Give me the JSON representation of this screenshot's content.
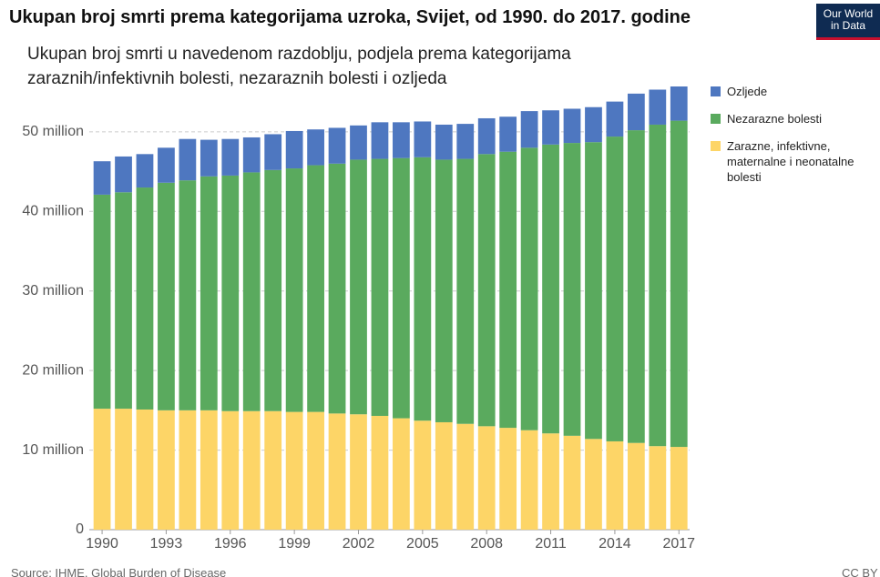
{
  "chart_data": {
    "type": "stacked_bar",
    "title": "Ukupan broj smrti prema kategorijama uzroka, Svijet, od 1990. do 2017. godine",
    "subtitle": "Ukupan broj smrti u navedenom razdoblju, podjela prema kategorijama zaraznih/infektivnih bolesti, nezaraznih bolesti i ozljeda",
    "logo": [
      "Our World",
      "in Data"
    ],
    "source": "Source: IHME, Global Burden of Disease",
    "license": "CC BY",
    "x": [
      1990,
      1991,
      1992,
      1993,
      1994,
      1995,
      1996,
      1997,
      1998,
      1999,
      2000,
      2001,
      2002,
      2003,
      2004,
      2005,
      2006,
      2007,
      2008,
      2009,
      2010,
      2011,
      2012,
      2013,
      2014,
      2015,
      2016,
      2017
    ],
    "xlim": [
      1989.4,
      2017.5
    ],
    "xticks": [
      1990,
      1993,
      1996,
      1999,
      2002,
      2005,
      2008,
      2011,
      2014,
      2017
    ],
    "ylim": [
      0,
      55700000
    ],
    "yticks": [
      0,
      {
        "value": 10000000,
        "label": "10 million"
      },
      {
        "value": 20000000,
        "label": "20 million"
      },
      {
        "value": 30000000,
        "label": "30 million"
      },
      {
        "value": 40000000,
        "label": "40 million"
      },
      {
        "value": 50000000,
        "label": "50 million"
      }
    ],
    "grid": true,
    "series": [
      {
        "name": "Zarazne, infektivne, maternalne i neonatalne bolesti",
        "color": "#fdd567",
        "values": [
          15200000,
          15200000,
          15100000,
          15000000,
          15000000,
          15000000,
          14900000,
          14900000,
          14900000,
          14800000,
          14800000,
          14600000,
          14500000,
          14300000,
          14000000,
          13700000,
          13500000,
          13300000,
          13000000,
          12800000,
          12500000,
          12100000,
          11800000,
          11400000,
          11100000,
          10900000,
          10500000,
          10400000
        ]
      },
      {
        "name": "Nezarazne bolesti",
        "color": "#5aaa5e",
        "values": [
          26900000,
          27200000,
          27900000,
          28600000,
          28900000,
          29400000,
          29600000,
          30000000,
          30300000,
          30600000,
          31000000,
          31400000,
          32000000,
          32300000,
          32700000,
          33100000,
          33000000,
          33300000,
          34200000,
          34700000,
          35500000,
          36300000,
          36800000,
          37300000,
          38300000,
          39300000,
          40400000,
          41000000
        ]
      },
      {
        "name": "Ozljede",
        "color": "#4e77c0",
        "values": [
          4200000,
          4500000,
          4200000,
          4400000,
          5200000,
          4600000,
          4600000,
          4400000,
          4500000,
          4700000,
          4500000,
          4500000,
          4300000,
          4600000,
          4500000,
          4500000,
          4400000,
          4400000,
          4500000,
          4400000,
          4600000,
          4300000,
          4300000,
          4400000,
          4400000,
          4600000,
          4400000,
          4300000
        ]
      }
    ]
  }
}
